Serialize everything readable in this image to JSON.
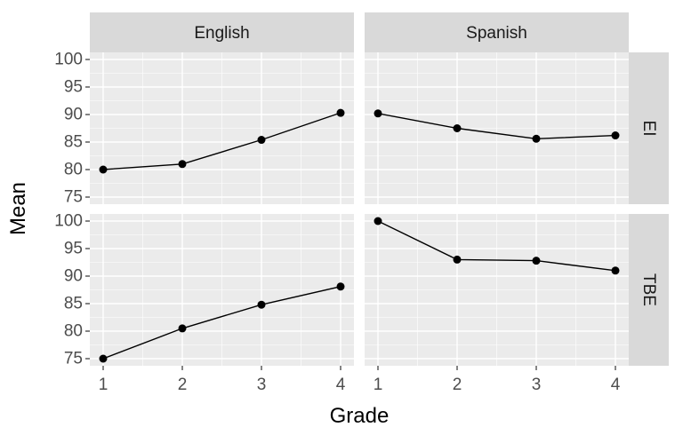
{
  "chart_data": {
    "type": "line",
    "facet_columns": [
      "English",
      "Spanish"
    ],
    "facet_rows": [
      "EI",
      "TBE"
    ],
    "xlabel": "Grade",
    "ylabel": "Mean",
    "x_ticks": [
      "1",
      "2",
      "3",
      "4"
    ],
    "y_ticks": [
      "75",
      "80",
      "85",
      "90",
      "95",
      "100"
    ],
    "xlim": [
      1,
      4
    ],
    "ylim": [
      75,
      100
    ],
    "grid": true,
    "panels": [
      {
        "column": "English",
        "row": "EI",
        "x": [
          1,
          2,
          3,
          4
        ],
        "y": [
          80.0,
          81.0,
          85.4,
          90.3
        ]
      },
      {
        "column": "Spanish",
        "row": "EI",
        "x": [
          1,
          2,
          3,
          4
        ],
        "y": [
          90.2,
          87.5,
          85.6,
          86.2
        ]
      },
      {
        "column": "English",
        "row": "TBE",
        "x": [
          1,
          2,
          3,
          4
        ],
        "y": [
          75.0,
          80.5,
          84.8,
          88.1
        ]
      },
      {
        "column": "Spanish",
        "row": "TBE",
        "x": [
          1,
          2,
          3,
          4
        ],
        "y": [
          100.0,
          93.0,
          92.8,
          91.0
        ]
      }
    ],
    "colors": {
      "panel_background": "#ebebeb",
      "strip_background": "#d9d9d9",
      "grid_major": "#ffffff",
      "line": "#000000",
      "point": "#000000"
    }
  }
}
